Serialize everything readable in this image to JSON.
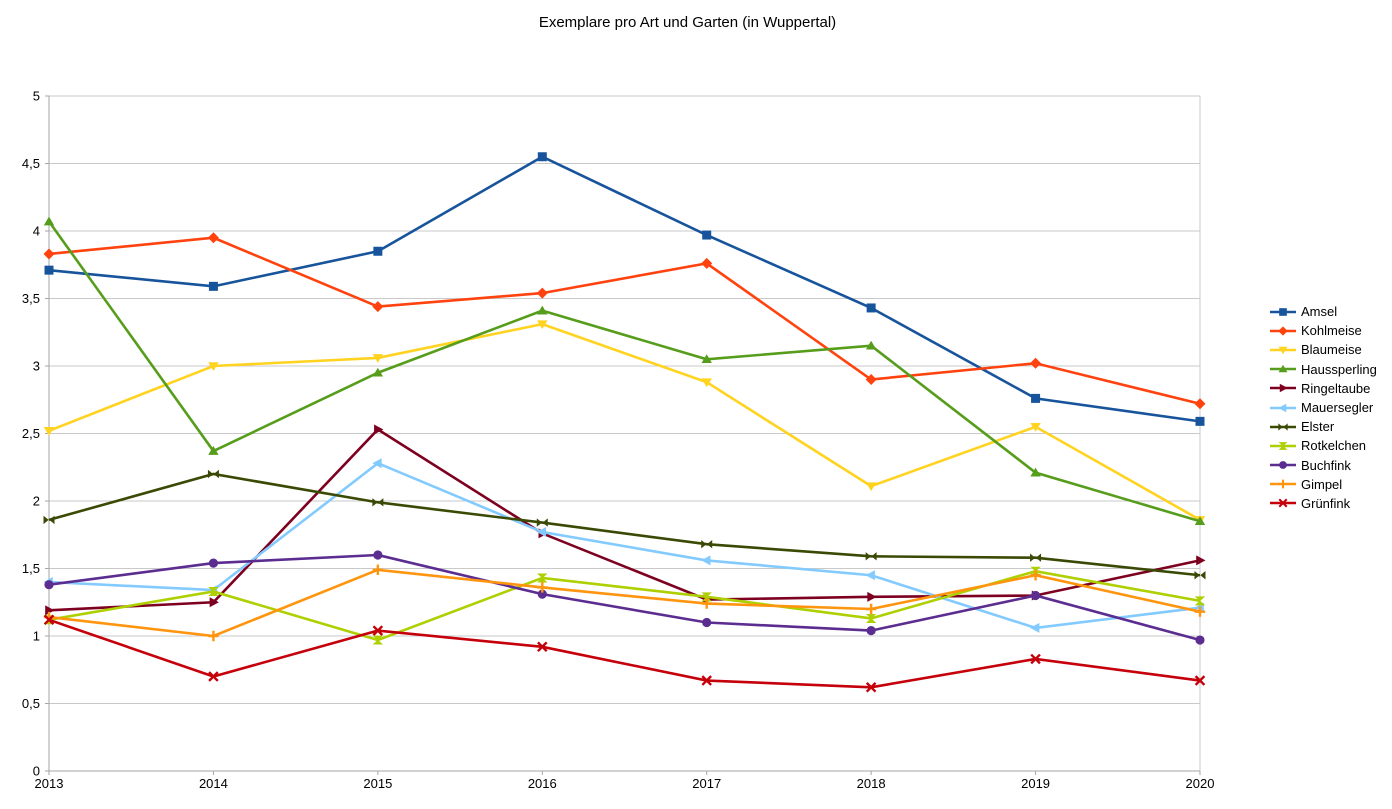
{
  "chart_data": {
    "type": "line",
    "title": "Exemplare pro Art und Garten (in Wuppertal)",
    "x": [
      2013,
      2014,
      2015,
      2016,
      2017,
      2018,
      2019,
      2020
    ],
    "x_tick_labels": [
      "2013",
      "2014",
      "2015",
      "2016",
      "2017",
      "2018",
      "2019",
      "2020"
    ],
    "xlabel": "",
    "ylabel": "",
    "ylim": [
      0,
      5
    ],
    "y_tick_step": 0.5,
    "y_tick_labels": [
      "0",
      "0,5",
      "1",
      "1,5",
      "2",
      "2,5",
      "3",
      "3,5",
      "4",
      "4,5",
      "5"
    ],
    "grid": "horizontal",
    "grid_color": "#C9C9C9",
    "axis_color": "#A6A6A6",
    "legend_position": "right",
    "series": [
      {
        "name": "Amsel",
        "color": "#17549B",
        "marker": "square",
        "values": [
          3.71,
          3.59,
          3.85,
          4.55,
          3.97,
          3.43,
          2.76,
          2.59
        ]
      },
      {
        "name": "Kohlmeise",
        "color": "#FF420E",
        "marker": "diamond",
        "values": [
          3.83,
          3.95,
          3.44,
          3.54,
          3.76,
          2.9,
          3.02,
          2.72
        ]
      },
      {
        "name": "Blaumeise",
        "color": "#FFD320",
        "marker": "triangle-down",
        "values": [
          2.52,
          3.0,
          3.06,
          3.31,
          2.88,
          2.11,
          2.55,
          1.86
        ]
      },
      {
        "name": "Haussperling",
        "color": "#579D1C",
        "marker": "triangle-up",
        "values": [
          4.07,
          2.37,
          2.95,
          3.41,
          3.05,
          3.15,
          2.21,
          1.85
        ]
      },
      {
        "name": "Ringeltaube",
        "color": "#7E0021",
        "marker": "arrow-right",
        "values": [
          1.19,
          1.25,
          2.53,
          1.76,
          1.27,
          1.29,
          1.3,
          1.56
        ]
      },
      {
        "name": "Mauersegler",
        "color": "#83CAFF",
        "marker": "arrow-left",
        "values": [
          1.4,
          1.34,
          2.28,
          1.77,
          1.56,
          1.45,
          1.06,
          1.21
        ]
      },
      {
        "name": "Elster",
        "color": "#3A4A04",
        "marker": "bowtie",
        "values": [
          1.86,
          2.2,
          1.99,
          1.84,
          1.68,
          1.59,
          1.58,
          1.45
        ]
      },
      {
        "name": "Rotkelchen",
        "color": "#AECF00",
        "marker": "hourglass",
        "values": [
          1.12,
          1.33,
          0.97,
          1.43,
          1.29,
          1.13,
          1.48,
          1.26
        ]
      },
      {
        "name": "Buchfink",
        "color": "#5B2D90",
        "marker": "circle",
        "values": [
          1.38,
          1.54,
          1.6,
          1.31,
          1.1,
          1.04,
          1.3,
          0.97
        ]
      },
      {
        "name": "Gimpel",
        "color": "#FF950E",
        "marker": "plus",
        "values": [
          1.14,
          1.0,
          1.49,
          1.36,
          1.24,
          1.2,
          1.45,
          1.18
        ]
      },
      {
        "name": "Grünfink",
        "color": "#C5000B",
        "marker": "x-cross",
        "values": [
          1.12,
          0.7,
          1.04,
          0.92,
          0.67,
          0.62,
          0.83,
          0.67
        ]
      }
    ]
  }
}
